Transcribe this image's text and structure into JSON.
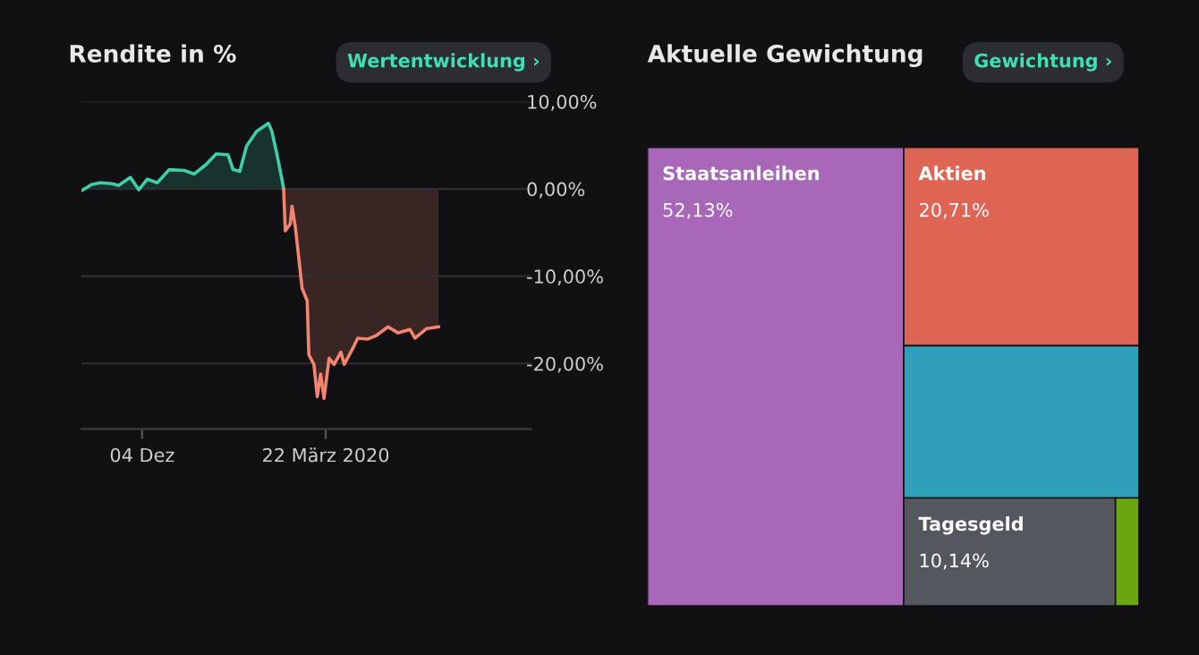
{
  "chart_data": [
    {
      "type": "area",
      "title": "Rendite in %",
      "annotations": [
        "Wertentwicklung ›"
      ],
      "series": [
        {
          "color": "#3ecfa8",
          "x": [
            "2019-10-29",
            "2019-11-04",
            "2019-11-09",
            "2019-11-16",
            "2019-11-20",
            "2019-11-27",
            "2019-12-02",
            "2019-12-07",
            "2019-12-13",
            "2019-12-20",
            "2019-12-29",
            "2020-01-04",
            "2020-01-11",
            "2020-01-17",
            "2020-01-24",
            "2020-01-27",
            "2020-01-31",
            "2020-02-04",
            "2020-02-10",
            "2020-02-17",
            "2020-02-19",
            "2020-02-22",
            "2020-02-25",
            "2020-02-26"
          ],
          "values": [
            -0.2,
            0.5,
            0.7,
            0.6,
            0.4,
            1.3,
            -0.1,
            1.1,
            0.7,
            2.2,
            2.1,
            1.7,
            2.8,
            4.0,
            3.9,
            2.2,
            2.0,
            4.9,
            6.6,
            7.5,
            6.6,
            4.0,
            1.1,
            0
          ]
        },
        {
          "color": "#f3846f",
          "x": [
            "2020-02-26",
            "2020-02-27",
            "2020-03-01",
            "2020-03-02",
            "2020-03-04",
            "2020-03-08",
            "2020-03-11",
            "2020-03-12",
            "2020-03-15",
            "2020-03-17",
            "2020-03-19",
            "2020-03-21",
            "2020-03-24",
            "2020-03-27",
            "2020-03-31",
            "2020-04-02",
            "2020-04-07",
            "2020-04-10",
            "2020-04-16",
            "2020-04-21",
            "2020-04-28",
            "2020-05-04",
            "2020-05-11",
            "2020-05-14",
            "2020-05-21",
            "2020-05-28"
          ],
          "values": [
            0,
            -4.8,
            -4.0,
            -2.0,
            -4.4,
            -11.4,
            -12.8,
            -19.0,
            -20.1,
            -23.8,
            -21.2,
            -24.0,
            -19.4,
            -20.1,
            -18.7,
            -20.1,
            -18.3,
            -17.1,
            -17.2,
            -16.8,
            -15.8,
            -16.5,
            -16.1,
            -17.1,
            -16.0,
            -15.8
          ]
        }
      ],
      "xlim": [
        "2019-10-29",
        "2020-07-22"
      ],
      "xticks": [
        {
          "value": "2019-12-04",
          "label": "04 Dez"
        },
        {
          "value": "2020-03-22",
          "label": "22 März 2020"
        }
      ],
      "ylim": [
        -27.5,
        10
      ],
      "yticks": [
        {
          "value": 10,
          "label": "10,00%"
        },
        {
          "value": 0,
          "label": "0,00%"
        },
        {
          "value": -10,
          "label": "-10,00%"
        },
        {
          "value": -20,
          "label": "-20,00%"
        }
      ],
      "grid": "y"
    },
    {
      "type": "other",
      "title": "Aktuelle Gewichtung",
      "annotations": [
        "Gewichtung ›"
      ],
      "categories": [
        "Staatsanleihen",
        "Aktien",
        null,
        "Tagesgeld",
        null
      ],
      "values": [
        52.13,
        20.71,
        null,
        10.14,
        null
      ],
      "value_labels": [
        "52,13%",
        "20,71%",
        null,
        "10,14%",
        null
      ],
      "colors": [
        "#a867b8",
        "#de6553",
        "#2f9fba",
        "#54575d",
        "#6aa512"
      ]
    }
  ]
}
